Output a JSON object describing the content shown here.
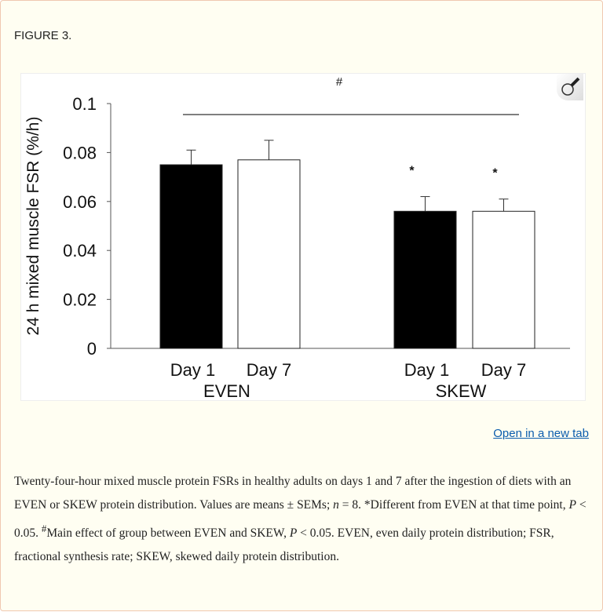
{
  "figure_label": "FIGURE 3.",
  "open_link": "Open in a new tab",
  "zoom_icon": "magnifier-icon",
  "caption": {
    "part1": "Twenty-four-hour mixed muscle protein FSRs in healthy adults on days 1 and 7 after the ingestion of diets with an EVEN or SKEW protein distribution. Values are means ± SEMs; ",
    "n_var": "n",
    "part2": " = 8. *Different from EVEN at that time point, ",
    "p_var1": "P",
    "part3": " < 0.05. ",
    "hash": "#",
    "part4": "Main effect of group between EVEN and SKEW, ",
    "p_var2": "P",
    "part5": " < 0.05. EVEN, even daily protein distribution; FSR, fractional synthesis rate; SKEW, skewed daily protein distribution."
  },
  "chart_data": {
    "type": "bar",
    "ylabel": "24 h mixed muscle FSR (%/h)",
    "ylim": [
      0,
      0.1
    ],
    "yticks": [
      "0",
      "0.02",
      "0.04",
      "0.06",
      "0.08",
      "0.1"
    ],
    "groups": [
      "EVEN",
      "SKEW"
    ],
    "categories": [
      "Day 1",
      "Day  7",
      "Day 1",
      "Day 7"
    ],
    "bars": [
      {
        "group": "EVEN",
        "day": "Day 1",
        "value": 0.075,
        "error": 0.006,
        "fill": "#000000",
        "annotation": ""
      },
      {
        "group": "EVEN",
        "day": "Day 7",
        "value": 0.077,
        "error": 0.008,
        "fill": "#ffffff",
        "annotation": ""
      },
      {
        "group": "SKEW",
        "day": "Day 1",
        "value": 0.056,
        "error": 0.006,
        "fill": "#000000",
        "annotation": "*"
      },
      {
        "group": "SKEW",
        "day": "Day 7",
        "value": 0.056,
        "error": 0.005,
        "fill": "#ffffff",
        "annotation": "*"
      }
    ],
    "group_significance": "#",
    "grid": false,
    "legend": "none"
  }
}
